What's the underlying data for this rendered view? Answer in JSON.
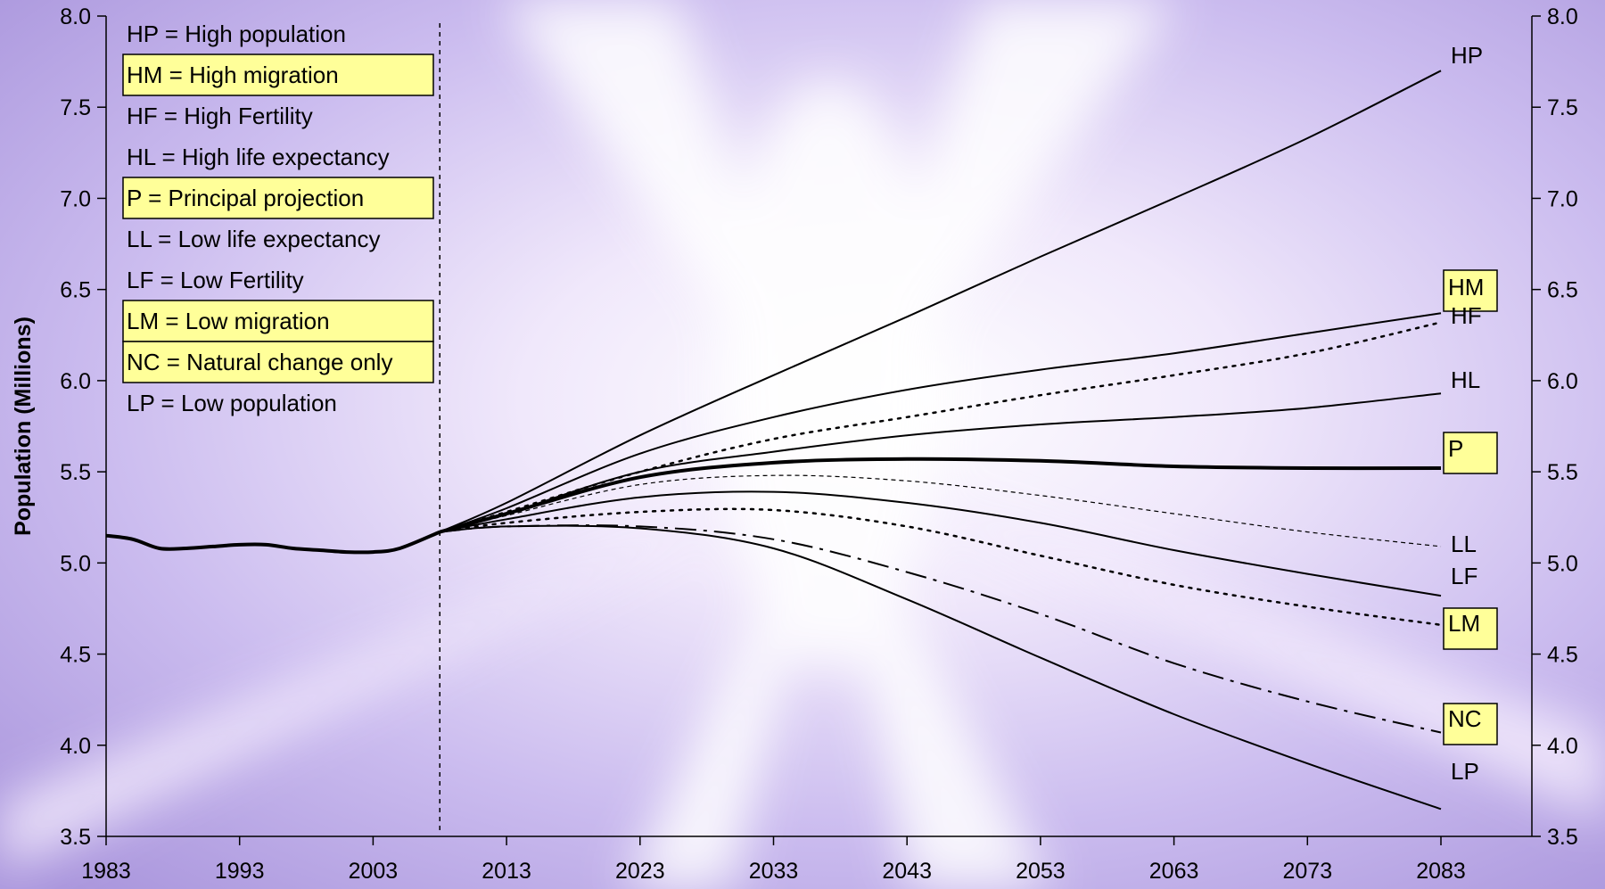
{
  "chart_data": {
    "type": "line",
    "ylabel": "Population (Millions)",
    "ylim": [
      3.5,
      8.0
    ],
    "xlim": [
      1983,
      2083
    ],
    "x_ticks": [
      1983,
      1993,
      2003,
      2013,
      2023,
      2033,
      2043,
      2053,
      2063,
      2073,
      2083
    ],
    "y_ticks": [
      3.5,
      4.0,
      4.5,
      5.0,
      5.5,
      6.0,
      6.5,
      7.0,
      7.5,
      8.0
    ],
    "y_tick_labels": [
      "3.5",
      "4.0",
      "4.5",
      "5.0",
      "5.5",
      "6.0",
      "6.5",
      "7.0",
      "7.5",
      "8.0"
    ],
    "secondary_y_axis": true,
    "grid": false,
    "projection_start_line": 2008,
    "legend_position": "top-left",
    "legend": [
      {
        "code": "HP",
        "text": "HP = High population",
        "highlight": false
      },
      {
        "code": "HM",
        "text": "HM = High migration",
        "highlight": true
      },
      {
        "code": "HF",
        "text": "HF = High Fertility",
        "highlight": false
      },
      {
        "code": "HL",
        "text": "HL = High life expectancy",
        "highlight": false
      },
      {
        "code": "P",
        "text": "P = Principal projection",
        "highlight": true
      },
      {
        "code": "LL",
        "text": "LL = Low life expectancy",
        "highlight": false
      },
      {
        "code": "LF",
        "text": "LF = Low Fertility",
        "highlight": false
      },
      {
        "code": "LM",
        "text": "LM = Low migration",
        "highlight": true
      },
      {
        "code": "NC",
        "text": "NC = Natural change only",
        "highlight": true
      },
      {
        "code": "LP",
        "text": "LP = Low population",
        "highlight": false
      }
    ],
    "historical": {
      "x": [
        1983,
        1985,
        1987,
        1989,
        1991,
        1993,
        1995,
        1997,
        1999,
        2001,
        2003,
        2005,
        2008
      ],
      "values": [
        5.15,
        5.13,
        5.08,
        5.08,
        5.09,
        5.1,
        5.1,
        5.08,
        5.07,
        5.06,
        5.06,
        5.08,
        5.17
      ]
    },
    "series": [
      {
        "name": "HP",
        "label": "HP",
        "highlight": false,
        "style": "solid",
        "x": [
          2008,
          2013,
          2023,
          2033,
          2043,
          2053,
          2063,
          2073,
          2083
        ],
        "values": [
          5.17,
          5.33,
          5.7,
          6.03,
          6.35,
          6.68,
          7.0,
          7.33,
          7.7
        ]
      },
      {
        "name": "HM",
        "label": "HM",
        "highlight": true,
        "style": "solid",
        "x": [
          2008,
          2013,
          2023,
          2033,
          2043,
          2053,
          2063,
          2073,
          2083
        ],
        "values": [
          5.17,
          5.3,
          5.6,
          5.8,
          5.95,
          6.06,
          6.15,
          6.26,
          6.37
        ]
      },
      {
        "name": "HF",
        "label": "HF",
        "highlight": false,
        "style": "dotted",
        "x": [
          2008,
          2013,
          2023,
          2033,
          2043,
          2053,
          2063,
          2073,
          2083
        ],
        "values": [
          5.17,
          5.28,
          5.5,
          5.68,
          5.8,
          5.92,
          6.03,
          6.15,
          6.32
        ]
      },
      {
        "name": "HL",
        "label": "HL",
        "highlight": false,
        "style": "solid",
        "x": [
          2008,
          2013,
          2023,
          2033,
          2043,
          2053,
          2063,
          2073,
          2083
        ],
        "values": [
          5.17,
          5.27,
          5.5,
          5.61,
          5.7,
          5.76,
          5.8,
          5.85,
          5.93
        ]
      },
      {
        "name": "P",
        "label": "P",
        "highlight": true,
        "style": "bold",
        "x": [
          2008,
          2013,
          2023,
          2033,
          2043,
          2053,
          2063,
          2073,
          2083
        ],
        "values": [
          5.17,
          5.27,
          5.47,
          5.55,
          5.57,
          5.56,
          5.53,
          5.52,
          5.52
        ]
      },
      {
        "name": "LL",
        "label": "LL",
        "highlight": false,
        "style": "thin-dashed",
        "x": [
          2008,
          2013,
          2023,
          2033,
          2043,
          2053,
          2063,
          2073,
          2083
        ],
        "values": [
          5.17,
          5.26,
          5.43,
          5.48,
          5.45,
          5.37,
          5.27,
          5.17,
          5.09
        ]
      },
      {
        "name": "LF",
        "label": "LF",
        "highlight": false,
        "style": "solid",
        "x": [
          2008,
          2013,
          2023,
          2033,
          2043,
          2053,
          2063,
          2073,
          2083
        ],
        "values": [
          5.17,
          5.24,
          5.36,
          5.39,
          5.33,
          5.22,
          5.07,
          4.94,
          4.82
        ]
      },
      {
        "name": "LM",
        "label": "LM",
        "highlight": true,
        "style": "dotted",
        "x": [
          2008,
          2013,
          2023,
          2033,
          2043,
          2053,
          2063,
          2073,
          2083
        ],
        "values": [
          5.17,
          5.22,
          5.28,
          5.29,
          5.2,
          5.04,
          4.88,
          4.76,
          4.66
        ]
      },
      {
        "name": "NC",
        "label": "NC",
        "highlight": true,
        "style": "dash-dot",
        "x": [
          2008,
          2013,
          2023,
          2033,
          2043,
          2053,
          2063,
          2073,
          2083
        ],
        "values": [
          5.17,
          5.2,
          5.2,
          5.13,
          4.95,
          4.72,
          4.45,
          4.24,
          4.07
        ]
      },
      {
        "name": "LP",
        "label": "LP",
        "highlight": false,
        "style": "solid",
        "x": [
          2008,
          2013,
          2023,
          2033,
          2043,
          2053,
          2063,
          2073,
          2083
        ],
        "values": [
          5.17,
          5.2,
          5.19,
          5.08,
          4.8,
          4.48,
          4.17,
          3.9,
          3.65
        ]
      }
    ]
  },
  "colors": {
    "highlight_fill": "#ffff99",
    "line": "#000000",
    "background_base": "#c8b8f0"
  }
}
